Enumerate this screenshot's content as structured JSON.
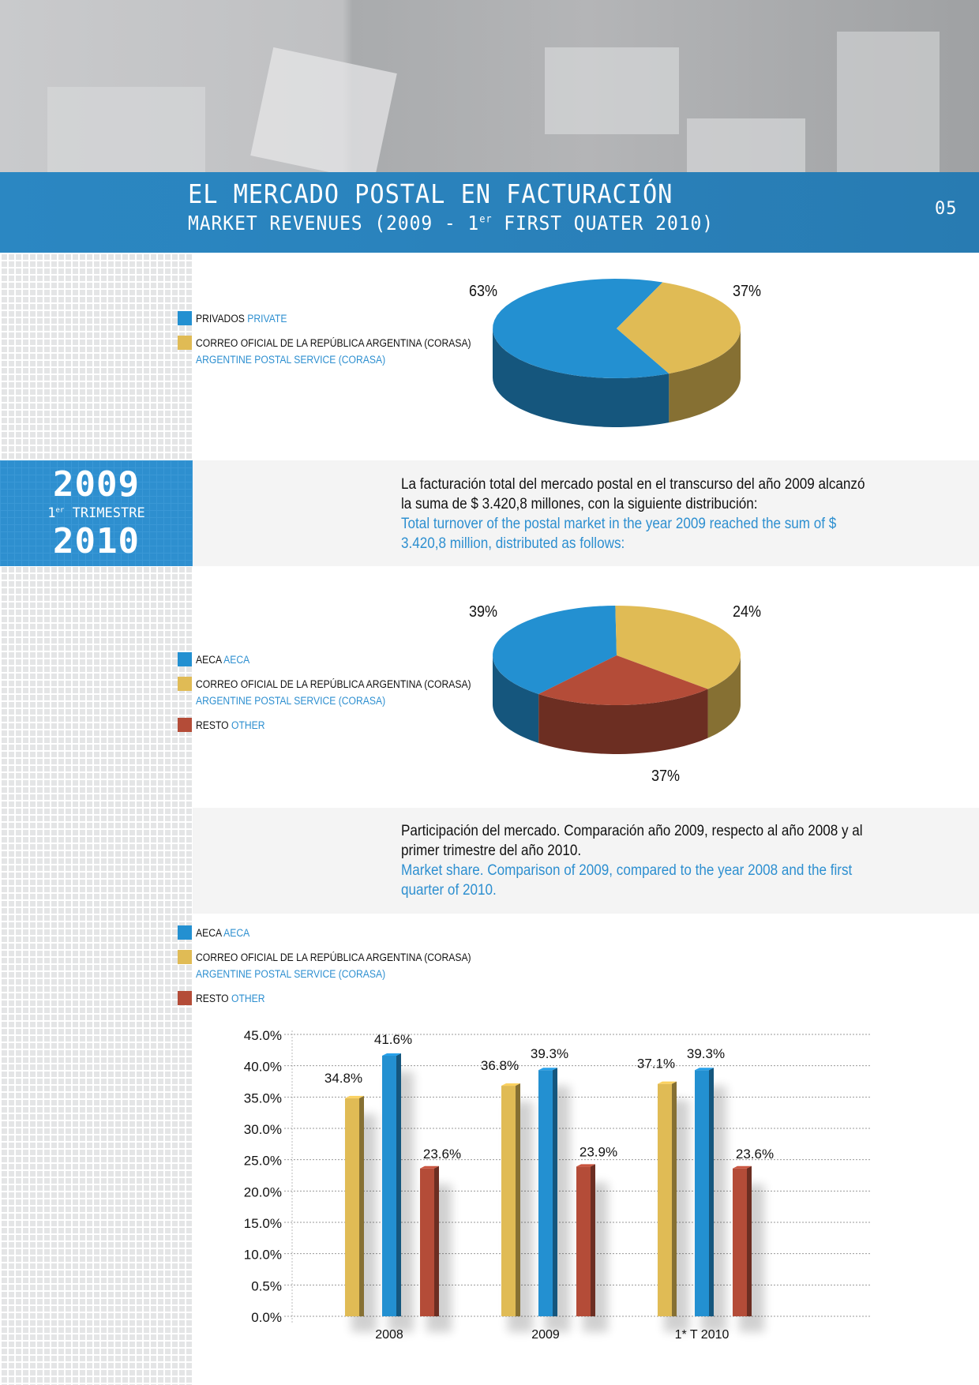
{
  "header": {
    "title": "EL MERCADO POSTAL EN FACTURACIÓN",
    "subtitle_pre": "MARKET REVENUES (2009 - 1",
    "subtitle_sup": "er",
    "subtitle_post": " FIRST QUATER 2010)",
    "page_number": "05"
  },
  "side_block": {
    "year_top": "2009",
    "sup": "er",
    "quarter": " TRIMESTRE",
    "quarter_num": "1",
    "year_bottom": "2010"
  },
  "colors": {
    "blue": "#2390d1",
    "yellow": "#e0bb55",
    "red": "#b44c38",
    "header_blue": "#2a83bd"
  },
  "legend1": [
    {
      "es": "PRIVADOS",
      "en": "PRIVATE",
      "color": "#2390d1"
    },
    {
      "es": "CORREO OFICIAL DE LA REPÚBLICA ARGENTINA (CORASA)",
      "en": "ARGENTINE POSTAL SERVICE (CORASA)",
      "color": "#e0bb55"
    }
  ],
  "legend2": [
    {
      "es": "AECA",
      "en": "AECA",
      "color": "#2390d1"
    },
    {
      "es": "CORREO OFICIAL DE LA REPÚBLICA ARGENTINA (CORASA)",
      "en": "ARGENTINE POSTAL SERVICE (CORASA)",
      "color": "#e0bb55"
    },
    {
      "es": "RESTO",
      "en": "OTHER",
      "color": "#b44c38"
    }
  ],
  "para1": {
    "es": "La facturación total del mercado postal en el transcurso del año 2009 alcanzó la suma de $ 3.420,8 millones, con la siguiente distribución:",
    "en": "Total turnover of the postal market in the year 2009 reached the sum of $ 3.420,8 million, distributed as follows:"
  },
  "para2": {
    "es": "Participación del mercado. Comparación año 2009, respecto al año 2008 y al primer trimestre del año 2010.",
    "en": "Market share. Comparison of 2009, compared to the year 2008 and the first quarter of 2010."
  },
  "chart_data": [
    {
      "type": "pie",
      "labels": [
        "PRIVADOS",
        "CORREO OFICIAL (CORASA)"
      ],
      "values": [
        63,
        37
      ],
      "data_labels": [
        "63%",
        "37%"
      ],
      "colors": [
        "#2390d1",
        "#e0bb55"
      ]
    },
    {
      "type": "pie",
      "labels": [
        "AECA",
        "CORREO OFICIAL (CORASA)",
        "RESTO"
      ],
      "values": [
        39,
        37,
        24
      ],
      "data_labels": [
        "39%",
        "37%",
        "24%"
      ],
      "colors": [
        "#2390d1",
        "#e0bb55",
        "#b44c38"
      ]
    },
    {
      "type": "bar",
      "categories": [
        "2008",
        "2009",
        "1* T 2010"
      ],
      "series": [
        {
          "name": "CORREO OFICIAL DE LA REPÚBLICA ARGENTINA (CORASA)",
          "values": [
            34.8,
            36.8,
            37.1
          ],
          "labels": [
            "34.8%",
            "36.8%",
            "37.1%"
          ],
          "color": "#e0bb55"
        },
        {
          "name": "AECA",
          "values": [
            41.6,
            39.3,
            39.3
          ],
          "labels": [
            "41.6%",
            "39.3%",
            "39.3%"
          ],
          "color": "#2390d1"
        },
        {
          "name": "RESTO",
          "values": [
            23.6,
            23.9,
            23.6
          ],
          "labels": [
            "23.6%",
            "23.9%",
            "23.6%"
          ],
          "color": "#b44c38"
        }
      ],
      "yticks": [
        "0.0%",
        "0.5%",
        "10.0%",
        "15.0%",
        "20.0%",
        "25.0%",
        "30.0%",
        "35.0%",
        "40.0%",
        "45.0%"
      ],
      "ylim": [
        0,
        45
      ],
      "grid": true,
      "legend": "top-left"
    }
  ]
}
